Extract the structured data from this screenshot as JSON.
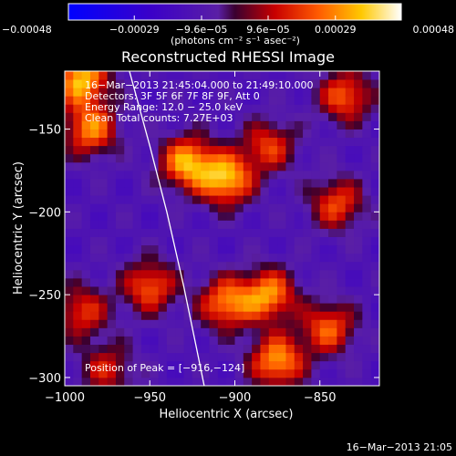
{
  "chart_data": {
    "type": "heatmap",
    "title": "Reconstructed RHESSI Image",
    "xlabel": "Heliocentric X (arcsec)",
    "ylabel": "Heliocentric Y (arcsec)",
    "xlim": [
      -1000,
      -815
    ],
    "ylim": [
      -305,
      -115
    ],
    "x_ticks": [
      {
        "v": -1000,
        "t": "−1000"
      },
      {
        "v": -950,
        "t": "−950"
      },
      {
        "v": -900,
        "t": "−900"
      },
      {
        "v": -850,
        "t": "−850"
      }
    ],
    "y_ticks": [
      {
        "v": -150,
        "t": "−150"
      },
      {
        "v": -200,
        "t": "−200"
      },
      {
        "v": -250,
        "t": "−250"
      },
      {
        "v": -300,
        "t": "−300"
      }
    ],
    "colorbar": {
      "range": [
        -0.00048,
        0.00048
      ],
      "tick_values": [
        -0.00048,
        -0.00029,
        -9.6e-05,
        9.6e-05,
        0.00029,
        0.00048
      ],
      "tick_labels": [
        "−0.00048",
        "−0.00029",
        "−9.6e−05",
        "9.6e−05",
        "0.00029",
        "0.00048"
      ],
      "unit_label": "(photons cm⁻² s⁻¹ asec⁻²)"
    },
    "annotations": [
      "16−Mar−2013 21:45:04.000 to 21:49:10.000",
      "Detectors: 3F 5F 6F 7F 8F 9F, Att 0",
      "Energy Range: 12.0 − 25.0 keV",
      "Clean    Total counts: 7.27E+03"
    ],
    "peak_label": "Position of Peak = [−916,−124]",
    "limb_points": [
      [
        -962,
        -115
      ],
      [
        -950,
        -160
      ],
      [
        -940,
        -200
      ],
      [
        -930,
        -245
      ],
      [
        -922,
        -285
      ],
      [
        -918,
        -305
      ]
    ],
    "bright_regions": [
      {
        "x": -990,
        "y": -120,
        "value": 0.00048
      },
      {
        "x": -985,
        "y": -150,
        "value": 0.0004
      },
      {
        "x": -928,
        "y": -170,
        "value": 0.00046
      },
      {
        "x": -905,
        "y": -180,
        "value": 0.00048
      },
      {
        "x": -880,
        "y": -160,
        "value": 0.0003
      },
      {
        "x": -835,
        "y": -130,
        "value": 0.00035
      },
      {
        "x": -840,
        "y": -195,
        "value": 0.00032
      },
      {
        "x": -950,
        "y": -245,
        "value": 0.00035
      },
      {
        "x": -905,
        "y": -255,
        "value": 0.0004
      },
      {
        "x": -880,
        "y": -250,
        "value": 0.00042
      },
      {
        "x": -875,
        "y": -290,
        "value": 0.00044
      },
      {
        "x": -845,
        "y": -270,
        "value": 0.00035
      },
      {
        "x": -990,
        "y": -260,
        "value": 0.0003
      },
      {
        "x": -975,
        "y": -295,
        "value": 0.00025
      }
    ]
  },
  "footer": {
    "timestamp": "16−Mar−2013 21:05"
  }
}
